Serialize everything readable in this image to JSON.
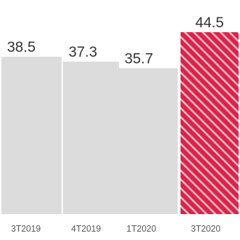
{
  "chart_data": {
    "type": "bar",
    "categories": [
      "3T2019",
      "4T2019",
      "1T2020",
      "3T2020"
    ],
    "values": [
      38.5,
      37.3,
      35.7,
      44.5
    ],
    "value_labels": [
      "38.5",
      "37.3",
      "35.7",
      "44.5"
    ],
    "highlight_index": 3,
    "title": "",
    "xlabel": "",
    "ylabel": "",
    "ylim": [
      0,
      44.5
    ],
    "grid": false,
    "legend": "none",
    "colors": {
      "bar": "#dcdcdc",
      "highlight": "#d8254a",
      "highlight_stripe": "#f3b8c6"
    }
  }
}
